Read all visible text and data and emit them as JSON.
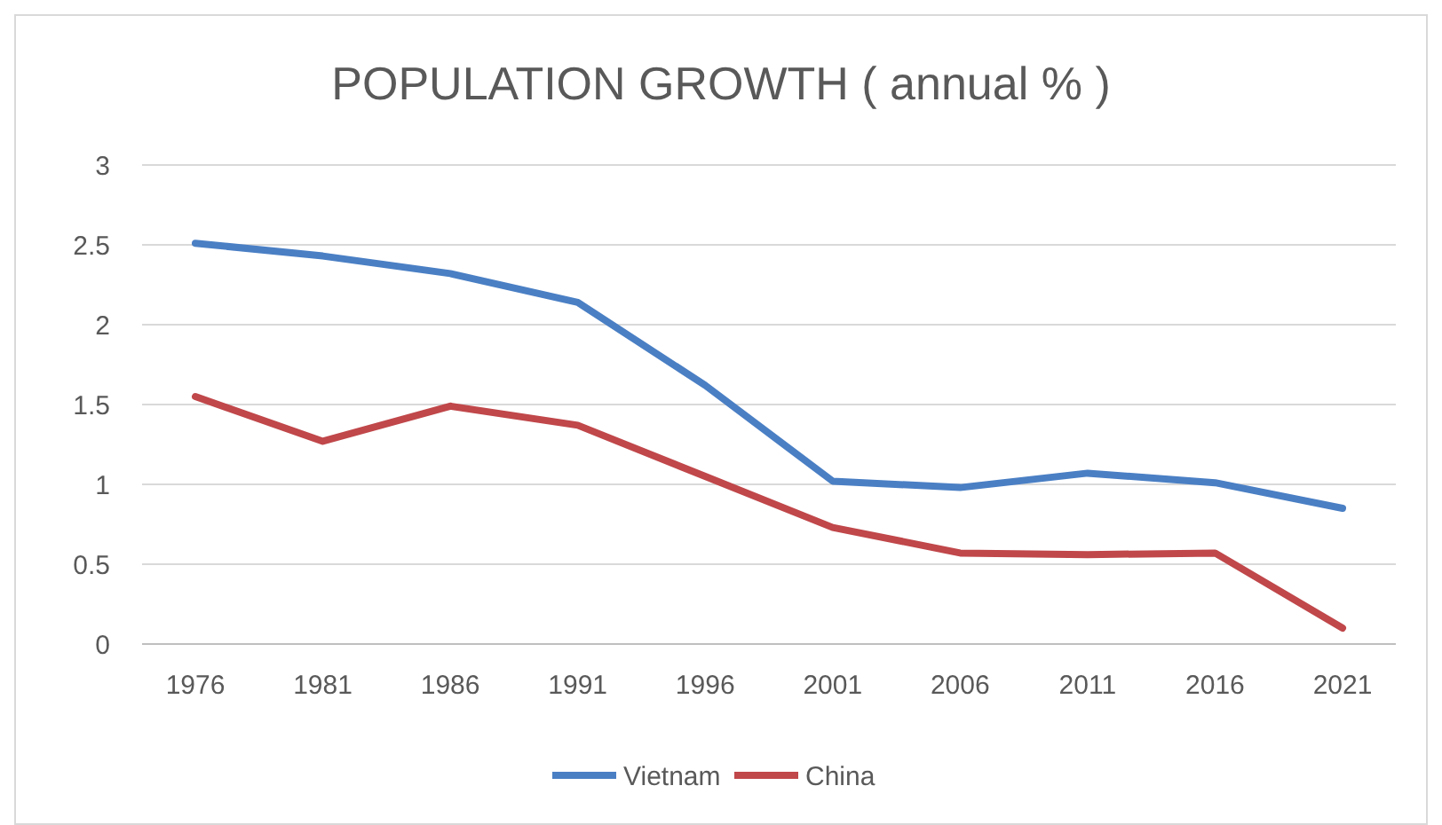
{
  "chart_data": {
    "type": "line",
    "title": "POPULATION GROWTH ( annual % )",
    "categories": [
      "1976",
      "1981",
      "1986",
      "1991",
      "1996",
      "2001",
      "2006",
      "2011",
      "2016",
      "2021"
    ],
    "series": [
      {
        "name": "Vietnam",
        "color": "#4a7fc4",
        "values": [
          2.51,
          2.43,
          2.32,
          2.14,
          1.62,
          1.02,
          0.98,
          1.07,
          1.01,
          0.85
        ]
      },
      {
        "name": "China",
        "color": "#c0474a",
        "values": [
          1.55,
          1.27,
          1.49,
          1.37,
          1.05,
          0.73,
          0.57,
          0.56,
          0.57,
          0.1
        ]
      }
    ],
    "ylim": [
      0,
      3
    ],
    "yticks": [
      0,
      0.5,
      1,
      1.5,
      2,
      2.5,
      3
    ],
    "grid": "y",
    "legend": "bottom",
    "marker": "none",
    "line_style": "solid"
  }
}
